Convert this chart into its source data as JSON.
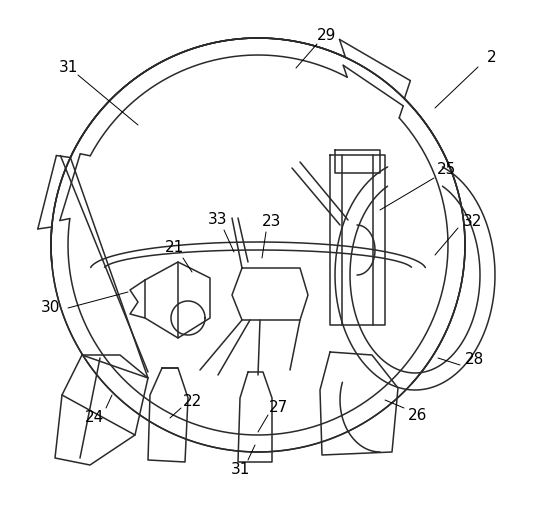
{
  "bg": "#ffffff",
  "lc": "#2a2a2a",
  "lw": 1.1,
  "tlw": 0.8,
  "fs": 11,
  "ac": "#000000",
  "figw": 5.42,
  "figh": 5.15,
  "dpi": 100
}
